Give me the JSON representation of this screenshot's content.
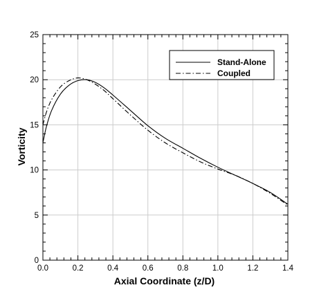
{
  "chart_data": {
    "type": "line",
    "xlabel": "Axial Coordinate (z/D)",
    "ylabel": "Vorticity",
    "xlim": [
      0,
      1.4
    ],
    "ylim": [
      0,
      25
    ],
    "xticks": [
      0,
      0.2,
      0.4,
      0.6,
      0.8,
      1.0,
      1.2,
      1.4
    ],
    "xtick_labels": [
      "0.0",
      "0.2",
      "0.4",
      "0.6",
      "0.8",
      "1.0",
      "1.2",
      "1.4"
    ],
    "yticks": [
      0,
      5,
      10,
      15,
      20,
      25
    ],
    "ytick_labels": [
      "0",
      "5",
      "10",
      "15",
      "20",
      "25"
    ],
    "grid": true,
    "legend_position": "top-right",
    "series": [
      {
        "name": "Stand-Alone",
        "style": "solid",
        "x": [
          0,
          0.02,
          0.05,
          0.1,
          0.15,
          0.2,
          0.25,
          0.3,
          0.35,
          0.4,
          0.5,
          0.6,
          0.7,
          0.8,
          0.9,
          1.0,
          1.1,
          1.2,
          1.3,
          1.4
        ],
        "y": [
          13.0,
          14.8,
          16.6,
          18.4,
          19.4,
          19.9,
          20.0,
          19.7,
          19.1,
          18.3,
          16.6,
          14.9,
          13.5,
          12.4,
          11.3,
          10.3,
          9.4,
          8.5,
          7.5,
          6.2
        ]
      },
      {
        "name": "Coupled",
        "style": "dashdot",
        "x": [
          0,
          0.02,
          0.05,
          0.1,
          0.15,
          0.2,
          0.25,
          0.3,
          0.35,
          0.4,
          0.5,
          0.6,
          0.7,
          0.8,
          0.9,
          1.0,
          1.1,
          1.2,
          1.3,
          1.4
        ],
        "y": [
          15.0,
          16.4,
          17.8,
          19.2,
          19.9,
          20.2,
          20.0,
          19.5,
          18.8,
          17.9,
          16.1,
          14.4,
          13.0,
          11.9,
          10.9,
          10.1,
          9.4,
          8.5,
          7.4,
          6.1
        ]
      }
    ]
  }
}
